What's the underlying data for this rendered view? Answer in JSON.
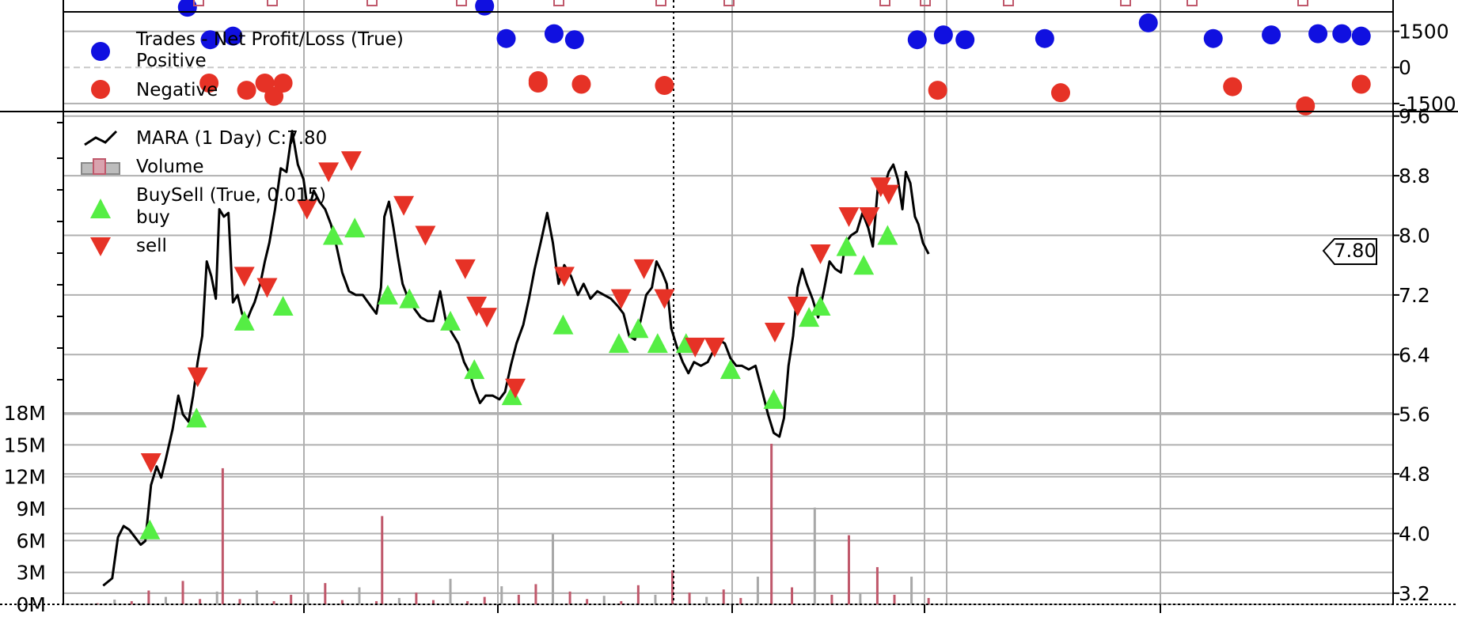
{
  "chart_data": [
    {
      "type": "scatter",
      "panel": "trades",
      "legend": {
        "title": "Trades - Net Profit/Loss (True)",
        "entries": [
          {
            "label": "Positive",
            "marker": "circle",
            "color": "#1010e0"
          },
          {
            "label": "Negative",
            "marker": "circle",
            "color": "#e63226"
          }
        ]
      },
      "yticks": [
        "1500",
        "0",
        "-1500"
      ],
      "ylim": [
        -1800,
        2800
      ],
      "series": [
        {
          "name": "Positive",
          "color": "#1010e0",
          "x": [
            109,
            129,
            149,
            370,
            389,
            431,
            449,
            750,
            773,
            792,
            862,
            953,
            1010,
            1061,
            1102,
            1123,
            1140
          ],
          "y": [
            2500,
            1150,
            1300,
            2550,
            1200,
            1400,
            1150,
            1150,
            1350,
            1150,
            1200,
            1850,
            1200,
            1350,
            1400,
            1400,
            1300
          ]
        },
        {
          "name": "Negative",
          "color": "#e63226",
          "x": [
            128,
            161,
            177,
            185,
            193,
            417,
            417,
            455,
            528,
            768,
            876,
            1027,
            1091,
            1140
          ],
          "y": [
            -650,
            -950,
            -650,
            -1200,
            -650,
            -550,
            -650,
            -700,
            -750,
            -950,
            -1050,
            -800,
            -1600,
            -700
          ]
        }
      ],
      "grid": true,
      "legend_placement": "top-left"
    },
    {
      "type": "line",
      "panel": "price",
      "legend": {
        "entries": [
          {
            "label": "MARA (1 Day) C:7.80",
            "marker": "line",
            "color": "#000000"
          },
          {
            "label": "Volume",
            "marker": "bar",
            "color": "#c0586b"
          },
          {
            "label": "BuySell (True, 0.015)",
            "marker": "none",
            "color": ""
          },
          {
            "label": "buy",
            "marker": "triangle-up",
            "color": "#55ee44"
          },
          {
            "label": "sell",
            "marker": "triangle-down",
            "color": "#e63226"
          }
        ]
      },
      "last_value_label": "7.80",
      "yticks_price": [
        "9.6",
        "8.8",
        "8.0",
        "7.2",
        "6.4",
        "5.6",
        "4.8",
        "4.0",
        "3.2"
      ],
      "price_ylim": [
        3.05,
        9.65
      ],
      "yticks_volume": [
        "18M",
        "15M",
        "12M",
        "9M",
        "6M",
        "3M",
        "0M"
      ],
      "volume_ylim": [
        0,
        18000000
      ],
      "xlim": [
        0,
        1168
      ],
      "price_points": [
        [
          35,
          3.3
        ],
        [
          43,
          3.4
        ],
        [
          48,
          3.95
        ],
        [
          53,
          4.1
        ],
        [
          58,
          4.05
        ],
        [
          63,
          3.95
        ],
        [
          68,
          3.85
        ],
        [
          72,
          3.9
        ],
        [
          77,
          4.65
        ],
        [
          82,
          4.9
        ],
        [
          86,
          4.75
        ],
        [
          90,
          5.0
        ],
        [
          96,
          5.4
        ],
        [
          101,
          5.85
        ],
        [
          105,
          5.6
        ],
        [
          110,
          5.5
        ],
        [
          114,
          5.85
        ],
        [
          118,
          6.3
        ],
        [
          122,
          6.65
        ],
        [
          126,
          7.65
        ],
        [
          130,
          7.45
        ],
        [
          134,
          7.15
        ],
        [
          137,
          8.35
        ],
        [
          141,
          8.25
        ],
        [
          145,
          8.3
        ],
        [
          149,
          7.1
        ],
        [
          153,
          7.2
        ],
        [
          157,
          6.95
        ],
        [
          161,
          6.85
        ],
        [
          165,
          7.0
        ],
        [
          168,
          7.1
        ],
        [
          173,
          7.35
        ],
        [
          177,
          7.65
        ],
        [
          181,
          7.9
        ],
        [
          186,
          8.35
        ],
        [
          191,
          8.9
        ],
        [
          196,
          8.85
        ],
        [
          201,
          9.4
        ],
        [
          206,
          8.95
        ],
        [
          211,
          8.75
        ],
        [
          215,
          8.3
        ],
        [
          220,
          8.6
        ],
        [
          225,
          8.45
        ],
        [
          230,
          8.35
        ],
        [
          235,
          8.15
        ],
        [
          240,
          7.85
        ],
        [
          245,
          7.5
        ],
        [
          251,
          7.25
        ],
        [
          257,
          7.2
        ],
        [
          263,
          7.2
        ],
        [
          270,
          7.05
        ],
        [
          275,
          6.95
        ],
        [
          279,
          7.3
        ],
        [
          282,
          8.25
        ],
        [
          286,
          8.45
        ],
        [
          290,
          8.1
        ],
        [
          294,
          7.7
        ],
        [
          298,
          7.35
        ],
        [
          303,
          7.15
        ],
        [
          309,
          7.0
        ],
        [
          314,
          6.9
        ],
        [
          320,
          6.85
        ],
        [
          325,
          6.85
        ],
        [
          331,
          7.25
        ],
        [
          336,
          6.85
        ],
        [
          341,
          6.7
        ],
        [
          347,
          6.55
        ],
        [
          352,
          6.3
        ],
        [
          357,
          6.15
        ],
        [
          361,
          5.95
        ],
        [
          366,
          5.75
        ],
        [
          371,
          5.85
        ],
        [
          377,
          5.85
        ],
        [
          383,
          5.8
        ],
        [
          388,
          5.9
        ],
        [
          393,
          6.25
        ],
        [
          398,
          6.55
        ],
        [
          404,
          6.8
        ],
        [
          409,
          7.15
        ],
        [
          414,
          7.55
        ],
        [
          420,
          7.95
        ],
        [
          425,
          8.3
        ],
        [
          430,
          7.9
        ],
        [
          435,
          7.35
        ],
        [
          440,
          7.6
        ],
        [
          446,
          7.45
        ],
        [
          452,
          7.2
        ],
        [
          457,
          7.35
        ],
        [
          463,
          7.15
        ],
        [
          469,
          7.25
        ],
        [
          475,
          7.2
        ],
        [
          481,
          7.15
        ],
        [
          487,
          7.05
        ],
        [
          492,
          6.95
        ],
        [
          497,
          6.65
        ],
        [
          502,
          6.6
        ],
        [
          507,
          6.85
        ],
        [
          512,
          7.2
        ],
        [
          517,
          7.3
        ],
        [
          521,
          7.65
        ],
        [
          526,
          7.5
        ],
        [
          530,
          7.35
        ],
        [
          534,
          6.75
        ],
        [
          539,
          6.5
        ],
        [
          544,
          6.3
        ],
        [
          549,
          6.15
        ],
        [
          554,
          6.3
        ],
        [
          560,
          6.25
        ],
        [
          566,
          6.3
        ],
        [
          571,
          6.45
        ],
        [
          576,
          6.6
        ],
        [
          581,
          6.55
        ],
        [
          586,
          6.35
        ],
        [
          591,
          6.25
        ],
        [
          596,
          6.25
        ],
        [
          602,
          6.2
        ],
        [
          608,
          6.25
        ],
        [
          614,
          5.9
        ],
        [
          619,
          5.6
        ],
        [
          624,
          5.35
        ],
        [
          629,
          5.3
        ],
        [
          633,
          5.55
        ],
        [
          637,
          6.25
        ],
        [
          641,
          6.65
        ],
        [
          645,
          7.3
        ],
        [
          649,
          7.55
        ],
        [
          653,
          7.35
        ],
        [
          658,
          7.15
        ],
        [
          663,
          6.9
        ],
        [
          668,
          7.25
        ],
        [
          673,
          7.65
        ],
        [
          678,
          7.55
        ],
        [
          683,
          7.5
        ],
        [
          687,
          7.9
        ],
        [
          692,
          8.0
        ],
        [
          697,
          8.05
        ],
        [
          702,
          8.3
        ],
        [
          707,
          8.1
        ],
        [
          711,
          7.85
        ],
        [
          716,
          8.75
        ],
        [
          721,
          8.65
        ],
        [
          725,
          8.85
        ],
        [
          729,
          8.95
        ],
        [
          733,
          8.75
        ],
        [
          737,
          8.35
        ],
        [
          740,
          8.85
        ],
        [
          744,
          8.7
        ],
        [
          748,
          8.25
        ],
        [
          751,
          8.15
        ],
        [
          755,
          7.9
        ],
        [
          760,
          7.75
        ]
      ],
      "volume_points": [
        [
          30,
          100000
        ],
        [
          45,
          450000
        ],
        [
          60,
          300000
        ],
        [
          75,
          1300000
        ],
        [
          90,
          700000
        ],
        [
          105,
          2200000
        ],
        [
          120,
          500000
        ],
        [
          135,
          1200000
        ],
        [
          140,
          12800000
        ],
        [
          155,
          500000
        ],
        [
          170,
          1300000
        ],
        [
          185,
          300000
        ],
        [
          200,
          900000
        ],
        [
          215,
          1100000
        ],
        [
          230,
          2000000
        ],
        [
          245,
          400000
        ],
        [
          260,
          1600000
        ],
        [
          275,
          300000
        ],
        [
          280,
          8300000
        ],
        [
          295,
          600000
        ],
        [
          310,
          1100000
        ],
        [
          325,
          400000
        ],
        [
          340,
          2400000
        ],
        [
          355,
          300000
        ],
        [
          370,
          700000
        ],
        [
          385,
          1700000
        ],
        [
          400,
          900000
        ],
        [
          415,
          1900000
        ],
        [
          430,
          6600000
        ],
        [
          445,
          1200000
        ],
        [
          460,
          500000
        ],
        [
          475,
          800000
        ],
        [
          490,
          300000
        ],
        [
          505,
          1800000
        ],
        [
          520,
          900000
        ],
        [
          535,
          3200000
        ],
        [
          550,
          1100000
        ],
        [
          565,
          700000
        ],
        [
          580,
          1400000
        ],
        [
          595,
          600000
        ],
        [
          610,
          2600000
        ],
        [
          622,
          15100000
        ],
        [
          640,
          1600000
        ],
        [
          660,
          9100000
        ],
        [
          675,
          900000
        ],
        [
          690,
          6500000
        ],
        [
          700,
          1000000
        ],
        [
          715,
          3500000
        ],
        [
          730,
          900000
        ],
        [
          745,
          2600000
        ],
        [
          760,
          600000
        ]
      ],
      "buy_points": [
        [
          76,
          4.05
        ],
        [
          117,
          5.55
        ],
        [
          159,
          6.85
        ],
        [
          193,
          7.05
        ],
        [
          237,
          8.0
        ],
        [
          256,
          8.1
        ],
        [
          285,
          7.2
        ],
        [
          304,
          7.15
        ],
        [
          340,
          6.85
        ],
        [
          361,
          6.2
        ],
        [
          394,
          5.85
        ],
        [
          439,
          6.8
        ],
        [
          488,
          6.55
        ],
        [
          505,
          6.75
        ],
        [
          522,
          6.55
        ],
        [
          547,
          6.55
        ],
        [
          586,
          6.2
        ],
        [
          624,
          5.8
        ],
        [
          655,
          6.9
        ],
        [
          665,
          7.05
        ],
        [
          688,
          7.85
        ],
        [
          703,
          7.6
        ],
        [
          724,
          8.0
        ]
      ],
      "sell_points": [
        [
          77,
          4.95
        ],
        [
          118,
          6.1
        ],
        [
          159,
          7.45
        ],
        [
          179,
          7.3
        ],
        [
          214,
          8.35
        ],
        [
          233,
          8.85
        ],
        [
          253,
          9.0
        ],
        [
          299,
          8.4
        ],
        [
          318,
          8.0
        ],
        [
          353,
          7.55
        ],
        [
          363,
          7.05
        ],
        [
          372,
          6.9
        ],
        [
          397,
          5.95
        ],
        [
          440,
          7.45
        ],
        [
          490,
          7.15
        ],
        [
          510,
          7.55
        ],
        [
          528,
          7.15
        ],
        [
          555,
          6.5
        ],
        [
          572,
          6.5
        ],
        [
          625,
          6.7
        ],
        [
          645,
          7.05
        ],
        [
          665,
          7.75
        ],
        [
          690,
          8.25
        ],
        [
          708,
          8.25
        ],
        [
          718,
          8.65
        ],
        [
          725,
          8.55
        ]
      ],
      "grid": true,
      "legend_placement": "top-left"
    }
  ]
}
